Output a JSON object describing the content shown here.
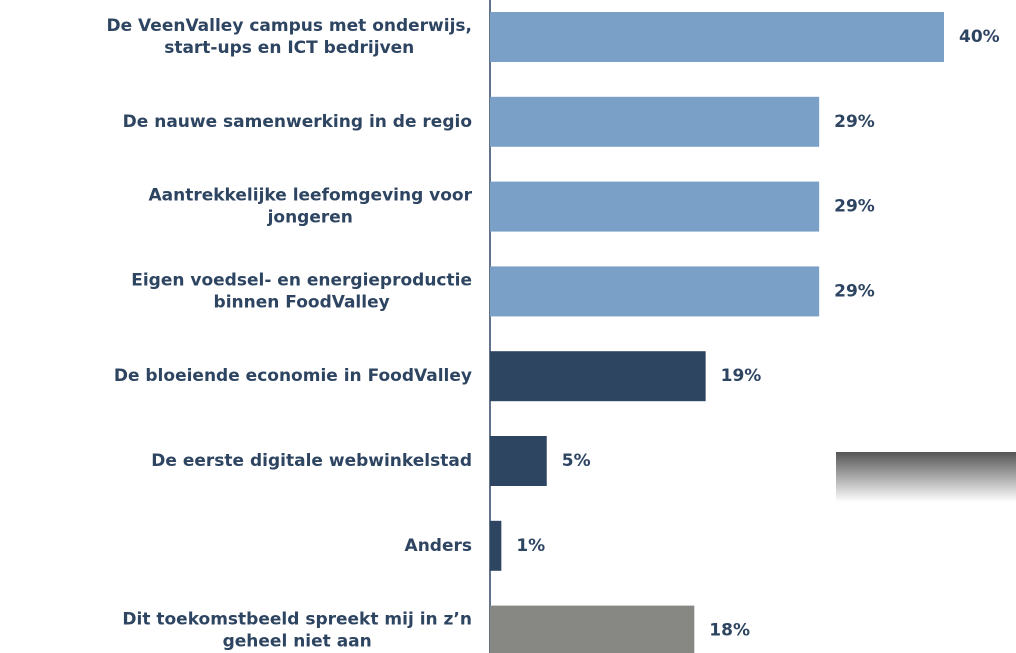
{
  "chart_data": {
    "type": "barh",
    "categories": [
      "De VeenValley campus met onderwijs,\nstart-ups en ICT bedrijven",
      "De nauwe samenwerking in de regio",
      "Aantrekkelijke leefomgeving voor\njongeren",
      "Eigen voedsel- en energieproductie\nbinnen FoodValley",
      "De bloeiende economie in FoodValley",
      "De eerste digitale webwinkelstad",
      "Anders",
      "Dit toekomstbeeld spreekt mij in z’n\ngeheel niet aan"
    ],
    "values": [
      40,
      29,
      29,
      29,
      19,
      5,
      1,
      18
    ],
    "value_labels": [
      "40%",
      "29%",
      "29%",
      "29%",
      "19%",
      "5%",
      "1%",
      "18%"
    ],
    "colors": [
      "#7aa0c8",
      "#7aa0c8",
      "#7aa0c8",
      "#7aa0c8",
      "#2e4562",
      "#2e4562",
      "#2e4562",
      "#878784"
    ],
    "xlim": [
      0,
      46
    ]
  }
}
